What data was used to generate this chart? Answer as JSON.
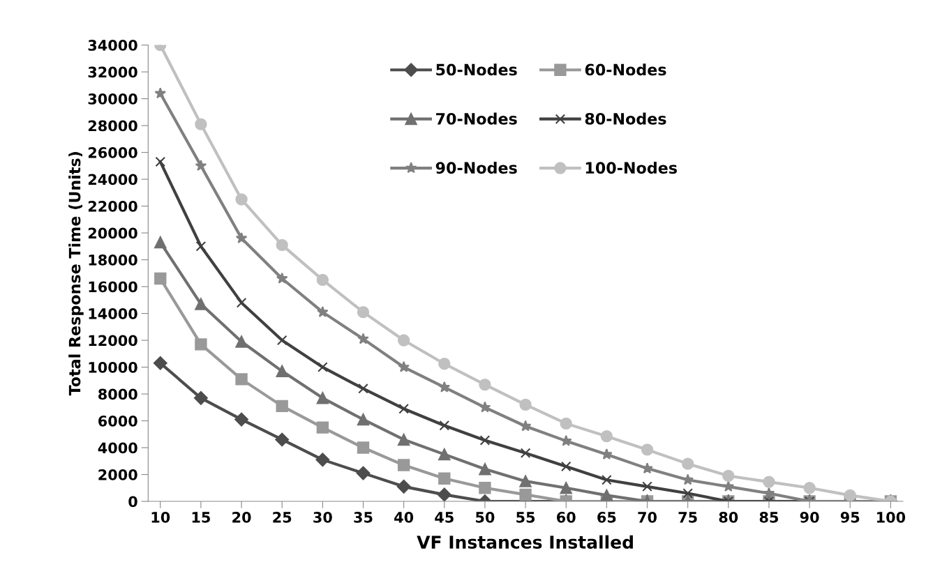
{
  "chart_data": {
    "type": "line",
    "xlabel": "VF Instances Installed",
    "ylabel": "Total Response Time (Units)",
    "categories": [
      "10",
      "15",
      "20",
      "25",
      "30",
      "35",
      "40",
      "45",
      "50",
      "55",
      "60",
      "65",
      "70",
      "75",
      "80",
      "85",
      "90",
      "95",
      "100"
    ],
    "ylim": [
      0,
      34000
    ],
    "yticks": [
      0,
      2000,
      4000,
      6000,
      8000,
      10000,
      12000,
      14000,
      16000,
      18000,
      20000,
      22000,
      24000,
      26000,
      28000,
      30000,
      32000,
      34000
    ],
    "grid": false,
    "legend": "top right",
    "line_style": "solid",
    "series": [
      {
        "name": "50-Nodes",
        "color": "#4d4d4d",
        "marker": "diamond",
        "values": [
          10300,
          7700,
          6100,
          4600,
          3100,
          2100,
          1100,
          500,
          0,
          0,
          0,
          0,
          0,
          0,
          0,
          0,
          0,
          0,
          0
        ]
      },
      {
        "name": "60-Nodes",
        "color": "#999999",
        "marker": "square",
        "values": [
          16600,
          11700,
          9100,
          7100,
          5500,
          4000,
          2700,
          1700,
          1000,
          500,
          0,
          0,
          0,
          0,
          0,
          0,
          0,
          0,
          0
        ]
      },
      {
        "name": "70-Nodes",
        "color": "#707070",
        "marker": "triangle",
        "values": [
          19300,
          14700,
          11900,
          9700,
          7700,
          6100,
          4600,
          3500,
          2400,
          1500,
          1000,
          450,
          0,
          0,
          0,
          0,
          0,
          0,
          0
        ]
      },
      {
        "name": "80-Nodes",
        "color": "#404040",
        "marker": "cross",
        "values": [
          25300,
          19000,
          14800,
          12000,
          10000,
          8400,
          6900,
          5650,
          4550,
          3600,
          2600,
          1600,
          1100,
          600,
          0,
          0,
          0,
          0,
          0
        ]
      },
      {
        "name": "90-Nodes",
        "color": "#808080",
        "marker": "star",
        "values": [
          30400,
          25000,
          19600,
          16600,
          14100,
          12100,
          10000,
          8500,
          7000,
          5600,
          4500,
          3500,
          2450,
          1600,
          1100,
          600,
          0,
          0,
          0
        ]
      },
      {
        "name": "100-Nodes",
        "color": "#c0c0c0",
        "marker": "circle",
        "values": [
          34000,
          28100,
          22500,
          19100,
          16500,
          14100,
          12000,
          10250,
          8700,
          7200,
          5800,
          4850,
          3850,
          2800,
          1900,
          1450,
          1000,
          450,
          0
        ]
      }
    ]
  }
}
